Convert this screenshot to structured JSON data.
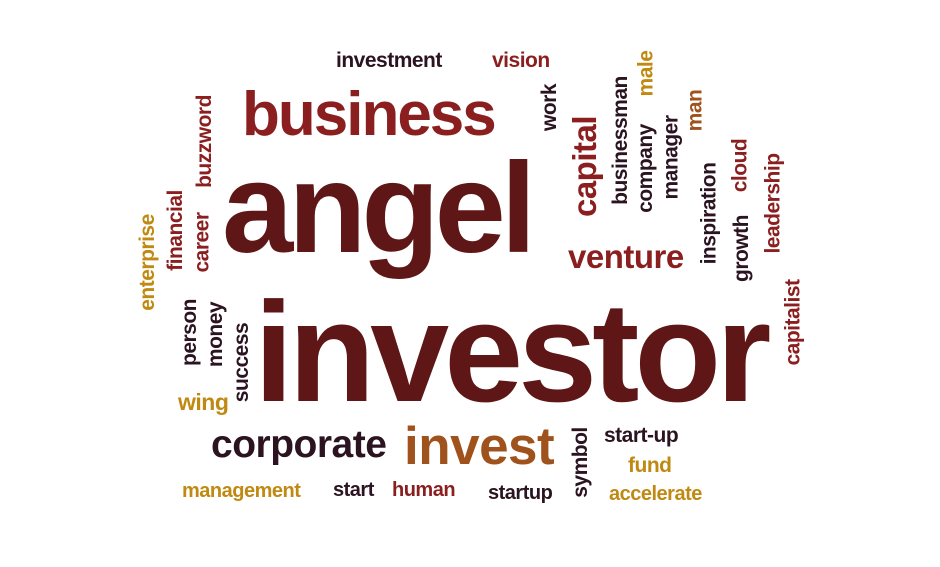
{
  "colors": {
    "dark": "#2b1420",
    "maroon": "#5e1616",
    "red": "#8b1e1e",
    "gold": "#c08a12",
    "brown": "#a0521d"
  },
  "words": [
    {
      "id": "investment",
      "text": "investment",
      "color": "dark"
    },
    {
      "id": "vision",
      "text": "vision",
      "color": "red"
    },
    {
      "id": "business",
      "text": "business",
      "color": "red"
    },
    {
      "id": "work",
      "text": "work",
      "color": "dark"
    },
    {
      "id": "capital",
      "text": "capital",
      "color": "red"
    },
    {
      "id": "businessman",
      "text": "businessman",
      "color": "dark"
    },
    {
      "id": "company",
      "text": "company",
      "color": "dark"
    },
    {
      "id": "male",
      "text": "male",
      "color": "gold"
    },
    {
      "id": "manager",
      "text": "manager",
      "color": "dark"
    },
    {
      "id": "man",
      "text": "man",
      "color": "brown"
    },
    {
      "id": "buzzword",
      "text": "buzzword",
      "color": "red"
    },
    {
      "id": "angel",
      "text": "angel",
      "color": "maroon"
    },
    {
      "id": "inspiration",
      "text": "inspiration",
      "color": "dark"
    },
    {
      "id": "cloud",
      "text": "cloud",
      "color": "red"
    },
    {
      "id": "growth",
      "text": "growth",
      "color": "dark"
    },
    {
      "id": "leadership",
      "text": "leadership",
      "color": "red"
    },
    {
      "id": "financial",
      "text": "financial",
      "color": "red"
    },
    {
      "id": "career",
      "text": "career",
      "color": "red"
    },
    {
      "id": "enterprise",
      "text": "enterprise",
      "color": "gold"
    },
    {
      "id": "venture",
      "text": "venture",
      "color": "red"
    },
    {
      "id": "person",
      "text": "person",
      "color": "dark"
    },
    {
      "id": "money",
      "text": "money",
      "color": "dark"
    },
    {
      "id": "success",
      "text": "success",
      "color": "dark"
    },
    {
      "id": "wing",
      "text": "wing",
      "color": "gold"
    },
    {
      "id": "investor",
      "text": "investor",
      "color": "maroon"
    },
    {
      "id": "capitalist",
      "text": "capitalist",
      "color": "red"
    },
    {
      "id": "corporate",
      "text": "corporate",
      "color": "dark"
    },
    {
      "id": "invest",
      "text": "invest",
      "color": "brown"
    },
    {
      "id": "symbol",
      "text": "symbol",
      "color": "dark"
    },
    {
      "id": "start-up",
      "text": "start-up",
      "color": "dark"
    },
    {
      "id": "fund",
      "text": "fund",
      "color": "gold"
    },
    {
      "id": "management",
      "text": "management",
      "color": "gold"
    },
    {
      "id": "start",
      "text": "start",
      "color": "dark"
    },
    {
      "id": "human",
      "text": "human",
      "color": "red"
    },
    {
      "id": "startup",
      "text": "startup",
      "color": "dark"
    },
    {
      "id": "accelerate",
      "text": "accelerate",
      "color": "gold"
    }
  ]
}
